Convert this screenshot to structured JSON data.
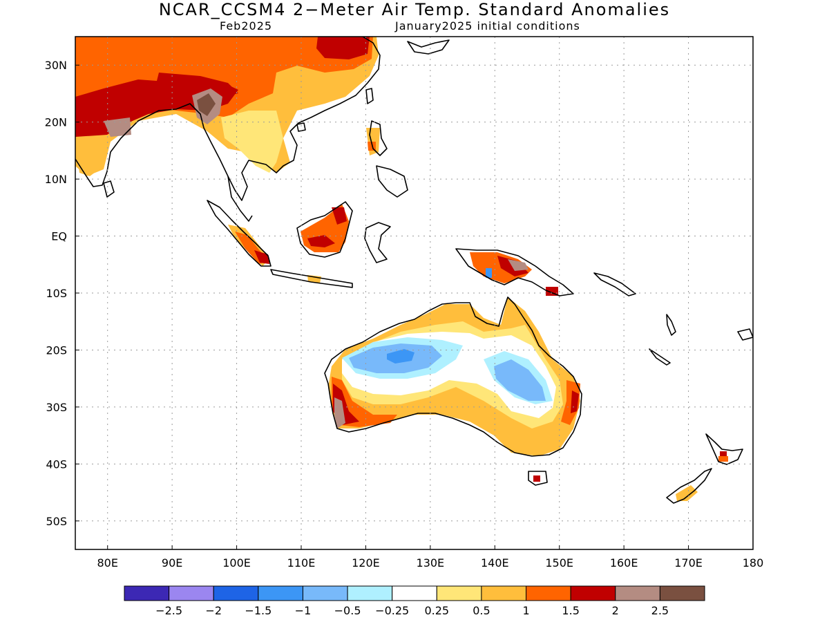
{
  "title": "NCAR_CCSM4 2−Meter Air Temp. Standard Anomalies",
  "subtitle_left": "Feb2025",
  "subtitle_right": "January2025 initial conditions",
  "map": {
    "lon_range": [
      75,
      180
    ],
    "lat_range": [
      -55,
      35
    ],
    "lon_ticks": [
      "80E",
      "90E",
      "100E",
      "110E",
      "120E",
      "130E",
      "140E",
      "150E",
      "160E",
      "170E",
      "180"
    ],
    "lon_tick_values": [
      80,
      90,
      100,
      110,
      120,
      130,
      140,
      150,
      160,
      170,
      180
    ],
    "lat_ticks": [
      "30N",
      "20N",
      "10N",
      "EQ",
      "10S",
      "20S",
      "30S",
      "40S",
      "50S"
    ],
    "lat_tick_values": [
      30,
      20,
      10,
      0,
      -10,
      -20,
      -30,
      -40,
      -50
    ],
    "grid": "dotted"
  },
  "colorbar": {
    "colors": [
      "#3c28b4",
      "#9b86f0",
      "#1e64e6",
      "#3c96f5",
      "#78b9fa",
      "#aff0ff",
      "#ffffff",
      "#ffe678",
      "#ffbe3c",
      "#ff6400",
      "#c00000",
      "#b48c82",
      "#7a5040"
    ],
    "labels": [
      "−2.5",
      "−2",
      "−1.5",
      "−1",
      "−0.5",
      "−0.25",
      "0.25",
      "0.5",
      "1",
      "1.5",
      "2",
      "2.5"
    ]
  }
}
